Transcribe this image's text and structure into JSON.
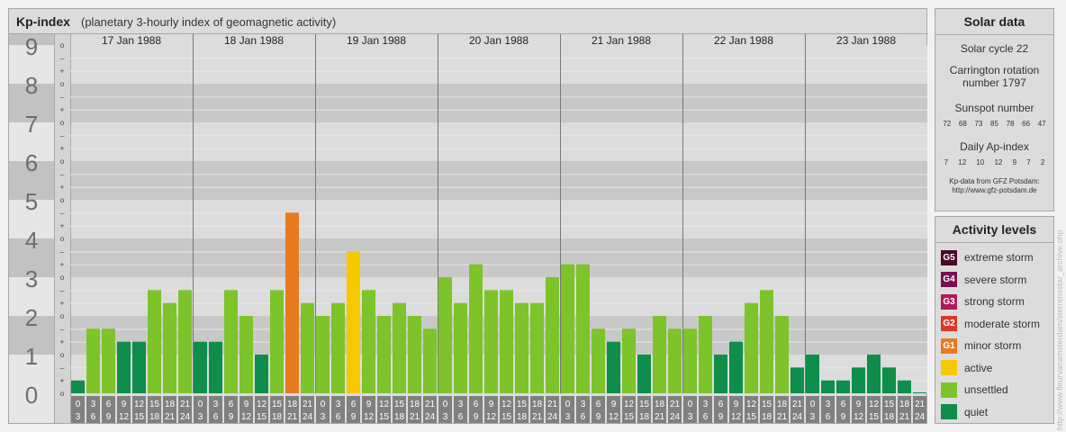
{
  "header": {
    "title": "Kp-index",
    "subtitle": "(planetary 3-hourly index of geomagnetic activity)"
  },
  "chart_data": {
    "type": "bar",
    "y_range": [
      0,
      9
    ],
    "y_major_ticks": [
      "0",
      "1",
      "2",
      "3",
      "4",
      "5",
      "6",
      "7",
      "8",
      "9"
    ],
    "y_minor_marks": [
      "o",
      "+",
      "–",
      "o",
      "+",
      "–",
      "o",
      "+",
      "–",
      "o",
      "+",
      "–",
      "o",
      "+",
      "–",
      "o",
      "+",
      "–",
      "o",
      "+",
      "–",
      "o",
      "+",
      "–",
      "o",
      "+",
      "–",
      "o"
    ],
    "interval_labels_top": [
      "0",
      "3",
      "6",
      "9",
      "12",
      "15",
      "18",
      "21"
    ],
    "interval_labels_bottom": [
      "3",
      "6",
      "9",
      "12",
      "15",
      "18",
      "21",
      "24"
    ],
    "days": [
      {
        "date": "17 Jan 1988",
        "kp": [
          0.333,
          1.667,
          1.667,
          1.333,
          1.333,
          2.667,
          2.333,
          2.667
        ]
      },
      {
        "date": "18 Jan 1988",
        "kp": [
          1.333,
          1.333,
          2.667,
          2.0,
          1.0,
          2.667,
          4.667,
          2.333
        ]
      },
      {
        "date": "19 Jan 1988",
        "kp": [
          2.0,
          2.333,
          3.667,
          2.667,
          2.0,
          2.333,
          2.0,
          1.667
        ]
      },
      {
        "date": "20 Jan 1988",
        "kp": [
          3.0,
          2.333,
          3.333,
          2.667,
          2.667,
          2.333,
          2.333,
          3.0
        ]
      },
      {
        "date": "21 Jan 1988",
        "kp": [
          3.333,
          3.333,
          1.667,
          1.333,
          1.667,
          1.0,
          2.0,
          1.667
        ]
      },
      {
        "date": "22 Jan 1988",
        "kp": [
          1.667,
          2.0,
          1.0,
          1.333,
          2.333,
          2.667,
          2.0,
          0.667
        ]
      },
      {
        "date": "23 Jan 1988",
        "kp": [
          1.0,
          0.333,
          0.333,
          0.667,
          1.0,
          0.667,
          0.333,
          0.0
        ]
      }
    ]
  },
  "colors": {
    "quiet": "#0e8e4a",
    "unsettled": "#7cc42a",
    "active": "#f6c800",
    "minor_storm": "#e87b1e",
    "moderate_storm": "#d83a2a",
    "strong_storm": "#b01a5a",
    "severe_storm": "#7a0e4e",
    "extreme_storm": "#4a0a2a",
    "band_dark": "#c8c8c8",
    "band_light": "#dcdcdc",
    "ylabel_dark_band": "#c2c2c2",
    "ylabel_light_band": "#e6e6e6",
    "ylabel_text": "#6e6e6e",
    "interval_box": "#808080"
  },
  "solar": {
    "title": "Solar data",
    "cycle": "Solar cycle 22",
    "carrington_1": "Carrington rotation",
    "carrington_2": "number 1797",
    "sunspot_title": "Sunspot number",
    "sunspot_values": [
      "72",
      "68",
      "73",
      "85",
      "78",
      "66",
      "47"
    ],
    "ap_title": "Daily Ap-index",
    "ap_values": [
      "7",
      "12",
      "10",
      "12",
      "9",
      "7",
      "2"
    ],
    "credit_1": "Kp-data from GFZ Potsdam:",
    "credit_2": "http://www.gfz-potsdam.de"
  },
  "activity": {
    "title": "Activity levels",
    "levels": [
      {
        "badge": "G5",
        "label": "extreme storm",
        "color_key": "extreme_storm"
      },
      {
        "badge": "G4",
        "label": "severe storm",
        "color_key": "severe_storm"
      },
      {
        "badge": "G3",
        "label": "strong storm",
        "color_key": "strong_storm"
      },
      {
        "badge": "G2",
        "label": "moderate storm",
        "color_key": "moderate_storm"
      },
      {
        "badge": "G1",
        "label": "minor storm",
        "color_key": "minor_storm"
      },
      {
        "badge": "",
        "label": "active",
        "color_key": "active"
      },
      {
        "badge": "",
        "label": "unsettled",
        "color_key": "unsettled"
      },
      {
        "badge": "",
        "label": "quiet",
        "color_key": "quiet"
      }
    ]
  },
  "side_url": "http://www.fleurvanamsterdam/sterrensstar_archive.ohp"
}
